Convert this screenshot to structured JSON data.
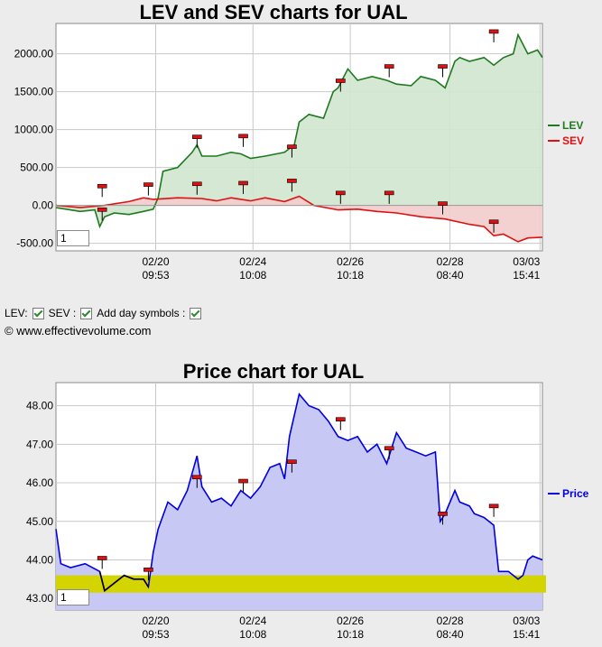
{
  "controls": {
    "lev_label": "LEV:",
    "sev_label": "SEV :",
    "day_symbols_label": "Add day symbols :",
    "copyright": "© www.effectivevolume.com"
  },
  "colors": {
    "lev": "#1f7a1f",
    "lev_fill": "#cfe5cf",
    "sev": "#dd1111",
    "sev_fill": "#f3cccc",
    "price": "#0000dd",
    "price_fill": "#c8c8f5",
    "price_low": "#000000",
    "band": "#d4d400"
  },
  "chart_data": [
    {
      "type": "line",
      "title": "LEV and SEV charts for UAL",
      "ylim": [
        -600,
        2400
      ],
      "yticks": [
        -500,
        0,
        500,
        1000,
        1500,
        2000
      ],
      "ytick_labels": [
        "-500.00",
        "0.00",
        "500.00",
        "1000.00",
        "1500.00",
        "2000.00"
      ],
      "x_tick_labels": [
        [
          "02/20",
          "09:53"
        ],
        [
          "02/24",
          "10:08"
        ],
        [
          "02/26",
          "10:18"
        ],
        [
          "02/28",
          "08:40"
        ],
        [
          "03/03",
          "15:41"
        ]
      ],
      "legend": [
        "LEV",
        "SEV"
      ],
      "legend_position": "right",
      "zoom_value": "1",
      "series": [
        {
          "name": "LEV",
          "x": [
            0,
            0.05,
            0.08,
            0.09,
            0.1,
            0.12,
            0.15,
            0.18,
            0.2,
            0.21,
            0.22,
            0.25,
            0.28,
            0.29,
            0.3,
            0.33,
            0.36,
            0.38,
            0.4,
            0.43,
            0.47,
            0.49,
            0.5,
            0.52,
            0.55,
            0.57,
            0.58,
            0.6,
            0.62,
            0.65,
            0.68,
            0.7,
            0.73,
            0.75,
            0.78,
            0.8,
            0.82,
            0.83,
            0.85,
            0.88,
            0.9,
            0.92,
            0.94,
            0.95,
            0.97,
            0.99,
            1.0
          ],
          "values": [
            -30,
            -80,
            -60,
            -280,
            -150,
            -100,
            -120,
            -80,
            -50,
            100,
            450,
            500,
            700,
            800,
            650,
            650,
            700,
            680,
            620,
            650,
            700,
            800,
            1100,
            1200,
            1150,
            1500,
            1550,
            1800,
            1650,
            1700,
            1650,
            1600,
            1580,
            1700,
            1650,
            1550,
            1900,
            1950,
            1900,
            1950,
            1850,
            1950,
            2000,
            2250,
            2000,
            2050,
            1950
          ]
        },
        {
          "name": "SEV",
          "x": [
            0,
            0.05,
            0.1,
            0.15,
            0.18,
            0.2,
            0.25,
            0.3,
            0.33,
            0.36,
            0.4,
            0.43,
            0.47,
            0.5,
            0.53,
            0.58,
            0.62,
            0.66,
            0.7,
            0.75,
            0.8,
            0.85,
            0.88,
            0.9,
            0.92,
            0.95,
            0.97,
            1.0
          ],
          "values": [
            0,
            -30,
            0,
            50,
            100,
            80,
            100,
            90,
            60,
            100,
            60,
            100,
            50,
            120,
            0,
            -60,
            -50,
            -80,
            -100,
            -150,
            -180,
            -250,
            -280,
            -400,
            -380,
            -480,
            -430,
            -420
          ]
        }
      ],
      "day_markers_lev": [
        [
          0.095,
          -80
        ],
        [
          0.19,
          250
        ],
        [
          0.29,
          880
        ],
        [
          0.385,
          890
        ],
        [
          0.485,
          750
        ],
        [
          0.585,
          1620
        ],
        [
          0.685,
          1810
        ],
        [
          0.795,
          1810
        ],
        [
          0.9,
          2270
        ]
      ],
      "day_markers_sev": [
        [
          0.095,
          230
        ],
        [
          0.29,
          260
        ],
        [
          0.385,
          270
        ],
        [
          0.485,
          300
        ],
        [
          0.585,
          140
        ],
        [
          0.685,
          140
        ],
        [
          0.795,
          0
        ],
        [
          0.9,
          -240
        ]
      ]
    },
    {
      "type": "area",
      "title": "Price chart for UAL",
      "ylim": [
        42.7,
        48.6
      ],
      "yticks": [
        43,
        44,
        45,
        46,
        47,
        48
      ],
      "ytick_labels": [
        "43.00",
        "44.00",
        "45.00",
        "46.00",
        "47.00",
        "48.00"
      ],
      "x_tick_labels": [
        [
          "02/20",
          "09:53"
        ],
        [
          "02/24",
          "10:08"
        ],
        [
          "02/26",
          "10:18"
        ],
        [
          "02/28",
          "08:40"
        ],
        [
          "03/03",
          "15:41"
        ]
      ],
      "legend": [
        "Price"
      ],
      "legend_position": "right",
      "zoom_value": "1",
      "band": [
        43.15,
        43.6
      ],
      "series": [
        {
          "name": "Price",
          "x": [
            0,
            0.01,
            0.03,
            0.06,
            0.09,
            0.1,
            0.11,
            0.12,
            0.14,
            0.16,
            0.18,
            0.19,
            0.2,
            0.21,
            0.23,
            0.25,
            0.27,
            0.29,
            0.3,
            0.32,
            0.34,
            0.36,
            0.38,
            0.4,
            0.42,
            0.44,
            0.46,
            0.47,
            0.48,
            0.5,
            0.52,
            0.54,
            0.56,
            0.58,
            0.6,
            0.62,
            0.64,
            0.66,
            0.68,
            0.7,
            0.72,
            0.74,
            0.76,
            0.78,
            0.79,
            0.8,
            0.82,
            0.83,
            0.85,
            0.86,
            0.88,
            0.9,
            0.91,
            0.93,
            0.95,
            0.96,
            0.97,
            0.98,
            1.0
          ],
          "values": [
            44.8,
            43.9,
            43.8,
            43.9,
            43.7,
            43.2,
            43.3,
            43.4,
            43.6,
            43.5,
            43.5,
            43.3,
            44.2,
            44.8,
            45.5,
            45.3,
            45.8,
            46.7,
            45.9,
            45.5,
            45.6,
            45.4,
            45.8,
            45.6,
            45.9,
            46.4,
            46.5,
            46.1,
            47.2,
            48.3,
            48.0,
            47.9,
            47.6,
            47.2,
            47.1,
            47.2,
            46.8,
            47.0,
            46.5,
            47.3,
            46.9,
            46.8,
            46.7,
            46.8,
            45.0,
            45.2,
            45.8,
            45.5,
            45.4,
            45.2,
            45.1,
            44.9,
            43.7,
            43.7,
            43.5,
            43.6,
            44.0,
            44.1,
            44.0
          ]
        }
      ],
      "day_markers": [
        [
          0.095,
          44.0
        ],
        [
          0.19,
          43.7
        ],
        [
          0.29,
          46.1
        ],
        [
          0.385,
          46.0
        ],
        [
          0.485,
          46.5
        ],
        [
          0.585,
          47.6
        ],
        [
          0.685,
          46.85
        ],
        [
          0.795,
          45.15
        ],
        [
          0.9,
          45.35
        ]
      ]
    }
  ]
}
